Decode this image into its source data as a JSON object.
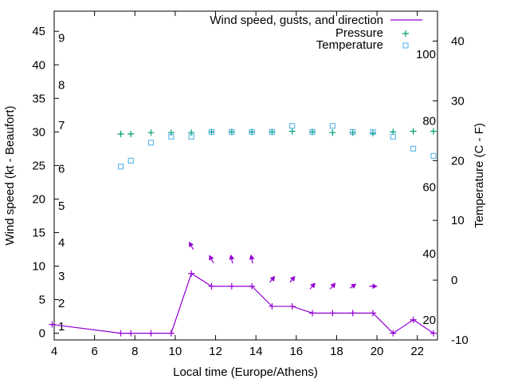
{
  "chart_data": {
    "type": "line",
    "xlabel": "Local time (Europe/Athens)",
    "ylabel_left": "Wind speed (kt - Beaufort)",
    "ylabel_right": "Temperature (C - F)",
    "xlim": [
      4,
      23
    ],
    "ylim_left": [
      -1,
      48
    ],
    "ylim_right": [
      -10,
      45
    ],
    "x_ticks": [
      4,
      6,
      8,
      10,
      12,
      14,
      16,
      18,
      20,
      22
    ],
    "x_tick_labels": [
      "4",
      "6",
      "8",
      "10",
      "12",
      "14",
      "16",
      "18",
      "20",
      "22"
    ],
    "y_left_ticks": [
      0,
      5,
      10,
      15,
      20,
      25,
      30,
      35,
      40,
      45
    ],
    "y_left_tick_labels": [
      "0",
      "5",
      "10",
      "15",
      "20",
      "25",
      "30",
      "35",
      "40",
      "45"
    ],
    "y_right_ticks": [
      -10,
      0,
      10,
      20,
      30,
      40
    ],
    "y_right_tick_labels": [
      "-10",
      "0",
      "10",
      "20",
      "30",
      "40"
    ],
    "beaufort_labels": [
      {
        "label": "1",
        "kt": 1
      },
      {
        "label": "2",
        "kt": 4.5
      },
      {
        "label": "3",
        "kt": 8.5
      },
      {
        "label": "4",
        "kt": 13.5
      },
      {
        "label": "5",
        "kt": 19
      },
      {
        "label": "6",
        "kt": 24.5
      },
      {
        "label": "7",
        "kt": 31
      },
      {
        "label": "8",
        "kt": 37
      },
      {
        "label": "9",
        "kt": 44
      }
    ],
    "fahrenheit_labels": [
      {
        "label": "20",
        "f": 20
      },
      {
        "label": "40",
        "f": 40
      },
      {
        "label": "60",
        "f": 60
      },
      {
        "label": "80",
        "f": 80
      },
      {
        "label": "100",
        "f": 100
      }
    ],
    "series": [
      {
        "name": "Wind speed, gusts, and direction",
        "color": "#9400d3",
        "axis": "left",
        "points": [
          [
            3.9,
            1.3
          ],
          [
            7.3,
            0
          ],
          [
            7.8,
            0
          ],
          [
            8.8,
            0
          ],
          [
            9.8,
            0
          ],
          [
            10.8,
            8.9
          ],
          [
            11.8,
            7
          ],
          [
            12.8,
            7
          ],
          [
            13.8,
            7
          ],
          [
            14.8,
            4
          ],
          [
            15.8,
            4
          ],
          [
            16.8,
            3
          ],
          [
            17.8,
            3
          ],
          [
            18.8,
            3
          ],
          [
            19.8,
            3
          ],
          [
            20.8,
            0
          ],
          [
            21.8,
            2
          ],
          [
            22.8,
            0
          ]
        ],
        "direction_arrows": [
          {
            "x": 10.8,
            "y": 13,
            "dir": "up-left"
          },
          {
            "x": 11.8,
            "y": 11,
            "dir": "up-left"
          },
          {
            "x": 12.8,
            "y": 11,
            "dir": "up-left-steep"
          },
          {
            "x": 13.8,
            "y": 11,
            "dir": "up-left-steep"
          },
          {
            "x": 14.8,
            "y": 8,
            "dir": "up-right"
          },
          {
            "x": 15.8,
            "y": 8,
            "dir": "up-right"
          },
          {
            "x": 16.8,
            "y": 7,
            "dir": "up-right"
          },
          {
            "x": 17.8,
            "y": 7,
            "dir": "up-right"
          },
          {
            "x": 18.8,
            "y": 7,
            "dir": "up-right-flat"
          },
          {
            "x": 19.8,
            "y": 7,
            "dir": "right"
          }
        ]
      },
      {
        "name": "Pressure",
        "color": "#009e73",
        "axis": "left",
        "marker": "plus",
        "points": [
          [
            7.3,
            29.7
          ],
          [
            7.8,
            29.7
          ],
          [
            8.8,
            29.9
          ],
          [
            9.8,
            29.9
          ],
          [
            10.8,
            29.9
          ],
          [
            11.8,
            30
          ],
          [
            12.8,
            30
          ],
          [
            13.8,
            30
          ],
          [
            14.8,
            30
          ],
          [
            15.8,
            30.1
          ],
          [
            16.8,
            30
          ],
          [
            17.8,
            29.9
          ],
          [
            18.8,
            29.9
          ],
          [
            19.8,
            29.8
          ],
          [
            20.8,
            30
          ],
          [
            21.8,
            30.1
          ],
          [
            22.8,
            30.1
          ]
        ]
      },
      {
        "name": "Temperature",
        "color": "#56b4e9",
        "axis": "right",
        "marker": "square",
        "points": [
          [
            7.3,
            19
          ],
          [
            7.8,
            20
          ],
          [
            8.8,
            23
          ],
          [
            9.8,
            24
          ],
          [
            10.8,
            24
          ],
          [
            11.8,
            24.8
          ],
          [
            12.8,
            24.8
          ],
          [
            13.8,
            24.8
          ],
          [
            14.8,
            24.8
          ],
          [
            15.8,
            25.8
          ],
          [
            16.8,
            24.8
          ],
          [
            17.8,
            25.8
          ],
          [
            18.8,
            24.8
          ],
          [
            19.8,
            24.8
          ],
          [
            20.8,
            24
          ],
          [
            21.8,
            22
          ],
          [
            22.8,
            20.8
          ]
        ]
      }
    ]
  }
}
